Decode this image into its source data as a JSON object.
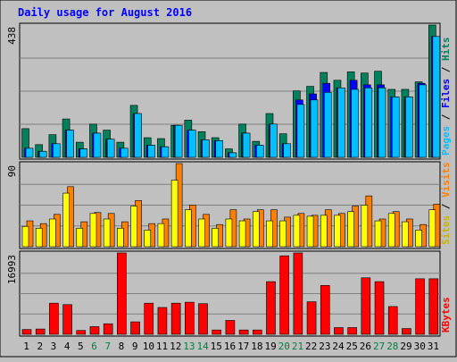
{
  "chart_data": {
    "type": "bar",
    "title": "Daily usage for August 2016",
    "categories": [
      "1",
      "2",
      "3",
      "4",
      "5",
      "6",
      "7",
      "8",
      "9",
      "10",
      "11",
      "12",
      "13",
      "14",
      "15",
      "16",
      "17",
      "18",
      "19",
      "20",
      "21",
      "22",
      "23",
      "24",
      "25",
      "26",
      "27",
      "28",
      "29",
      "30",
      "31"
    ],
    "weekend_days": [
      "6",
      "7",
      "13",
      "14",
      "20",
      "21",
      "27",
      "28"
    ],
    "panels": [
      {
        "id": "pages-files-hits",
        "ymax": 438,
        "ymax_label": "438",
        "right_label_parts": [
          "Pages",
          " / ",
          "Files",
          " / ",
          "Hits"
        ],
        "series": [
          {
            "name": "Hits",
            "color": "#00805c",
            "values": [
              95,
              42,
              75,
              127,
              50,
              110,
              90,
              50,
              172,
              65,
              62,
              106,
              123,
              85,
              65,
              28,
              110,
              53,
              145,
              78,
              220,
              235,
              281,
              255,
              283,
              279,
              285,
              225,
              225,
              250,
              438
            ]
          },
          {
            "name": "Files",
            "color": "#0000ff",
            "values": [
              30,
              20,
              45,
              90,
              28,
              80,
              60,
              30,
              145,
              40,
              35,
              106,
              90,
              58,
              55,
              15,
              80,
              40,
              110,
              45,
              190,
              210,
              245,
              230,
              255,
              240,
              240,
              200,
              200,
              245,
              400
            ]
          },
          {
            "name": "Pages",
            "color": "#00c0ff",
            "values": [
              30,
              20,
              45,
              90,
              28,
              80,
              60,
              30,
              145,
              40,
              35,
              106,
              90,
              58,
              55,
              15,
              80,
              40,
              110,
              45,
              175,
              190,
              215,
              230,
              225,
              230,
              230,
              200,
              200,
              240,
              400
            ]
          }
        ]
      },
      {
        "id": "sites-visits",
        "ymax": 90,
        "ymax_label": "90",
        "right_label_parts": [
          "Sites",
          " / ",
          "Visits"
        ],
        "series": [
          {
            "name": "Visits",
            "color": "#ff8000",
            "values": [
              28,
              25,
              35,
              65,
              27,
              37,
              36,
              27,
              50,
              25,
              30,
              90,
              45,
              35,
              24,
              40,
              30,
              40,
              40,
              32,
              36,
              34,
              40,
              36,
              44,
              55,
              30,
              38,
              30,
              24,
              46
            ]
          },
          {
            "name": "Sites",
            "color": "#ffff00",
            "values": [
              22,
              20,
              30,
              58,
              20,
              36,
              30,
              20,
              44,
              18,
              25,
              72,
              40,
              30,
              20,
              30,
              28,
              38,
              28,
              28,
              34,
              33,
              34,
              34,
              38,
              45,
              28,
              36,
              27,
              18,
              40
            ]
          }
        ]
      },
      {
        "id": "kbytes",
        "ymax": 16993,
        "ymax_label": "16993",
        "right_label_parts": [
          "KBytes"
        ],
        "series": [
          {
            "name": "KBytes",
            "color": "#ff0000",
            "values": [
              1000,
              1100,
              6500,
              6200,
              800,
              1600,
              2200,
              16993,
              2600,
              6500,
              5600,
              6500,
              6700,
              6400,
              900,
              2900,
              900,
              900,
              11000,
              16400,
              16993,
              6800,
              10200,
              1400,
              1400,
              11800,
              11000,
              5800,
              1200,
              11600,
              11600
            ]
          }
        ]
      }
    ],
    "colors": {
      "title": "#0000ff",
      "axis_label_dark": "#000000",
      "weekend_label": "#008040",
      "sep": "#000000"
    }
  }
}
